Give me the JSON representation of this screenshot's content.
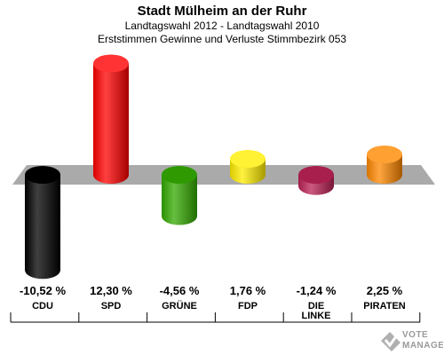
{
  "header": {
    "title": "Stadt Mülheim an der Ruhr",
    "subtitle1": "Landtagswahl 2012 - Landtagswahl 2010",
    "subtitle2": "Erststimmen Gewinne und Verluste Stimmbezirk 053"
  },
  "chart_data": {
    "type": "bar",
    "title": "Stadt Mülheim an der Ruhr",
    "subtitle": "Landtagswahl 2012 - Landtagswahl 2010 / Erststimmen Gewinne und Verluste Stimmbezirk 053",
    "categories": [
      "CDU",
      "SPD",
      "GRÜNE",
      "FDP",
      "DIE LINKE",
      "PIRATEN"
    ],
    "category_lines": [
      [
        "CDU"
      ],
      [
        "SPD"
      ],
      [
        "GRÜNE"
      ],
      [
        "FDP"
      ],
      [
        "DIE",
        "LINKE"
      ],
      [
        "PIRATEN"
      ]
    ],
    "values": [
      -10.52,
      12.3,
      -4.56,
      1.76,
      -1.24,
      2.25
    ],
    "value_labels": [
      "-10,52 %",
      "12,30 %",
      "-4,56 %",
      "1,76 %",
      "-1,24 %",
      "2,25 %"
    ],
    "colors": [
      "#000000",
      "#ff0000",
      "#33aa00",
      "#ffee00",
      "#bb2255",
      "#ff8800"
    ],
    "unit": "%",
    "ylim": [
      -12,
      14
    ],
    "grid": false,
    "legend": "none"
  },
  "watermark": {
    "line1": "VOTE",
    "line2": "MANAGER"
  }
}
